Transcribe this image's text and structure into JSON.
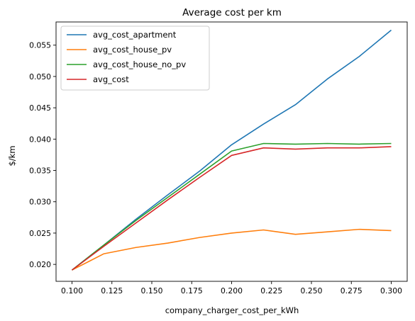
{
  "chart_data": {
    "type": "line",
    "title": "Average cost per km",
    "xlabel": "company_charger_cost_per_kWh",
    "ylabel": "$/km",
    "xlim": [
      0.09,
      0.31
    ],
    "ylim": [
      0.0173,
      0.0587
    ],
    "xticks": [
      0.1,
      0.125,
      0.15,
      0.175,
      0.2,
      0.225,
      0.25,
      0.275,
      0.3
    ],
    "xtick_labels": [
      "0.100",
      "0.125",
      "0.150",
      "0.175",
      "0.200",
      "0.225",
      "0.250",
      "0.275",
      "0.300"
    ],
    "yticks": [
      0.02,
      0.025,
      0.03,
      0.035,
      0.04,
      0.045,
      0.05,
      0.055
    ],
    "ytick_labels": [
      "0.020",
      "0.025",
      "0.030",
      "0.035",
      "0.040",
      "0.045",
      "0.050",
      "0.055"
    ],
    "grid": false,
    "legend_position": "upper left",
    "x": [
      0.1,
      0.12,
      0.14,
      0.16,
      0.18,
      0.2,
      0.22,
      0.24,
      0.26,
      0.28,
      0.3
    ],
    "series": [
      {
        "name": "avg_cost_apartment",
        "color": "#1f77b4",
        "values": [
          0.0191,
          0.0231,
          0.0272,
          0.0311,
          0.0349,
          0.0391,
          0.0424,
          0.0455,
          0.0496,
          0.0532,
          0.0574
        ]
      },
      {
        "name": "avg_cost_house_pv",
        "color": "#ff7f0e",
        "values": [
          0.0191,
          0.0217,
          0.0227,
          0.0234,
          0.0243,
          0.025,
          0.0255,
          0.0248,
          0.0252,
          0.0256,
          0.0254
        ]
      },
      {
        "name": "avg_cost_house_no_pv",
        "color": "#2ca02c",
        "values": [
          0.0191,
          0.0231,
          0.027,
          0.0307,
          0.0344,
          0.0381,
          0.0393,
          0.0392,
          0.0393,
          0.0392,
          0.0393
        ]
      },
      {
        "name": "avg_cost",
        "color": "#d62728",
        "values": [
          0.0191,
          0.0229,
          0.0266,
          0.0303,
          0.0339,
          0.0374,
          0.0386,
          0.0384,
          0.0386,
          0.0386,
          0.0388
        ]
      }
    ]
  }
}
